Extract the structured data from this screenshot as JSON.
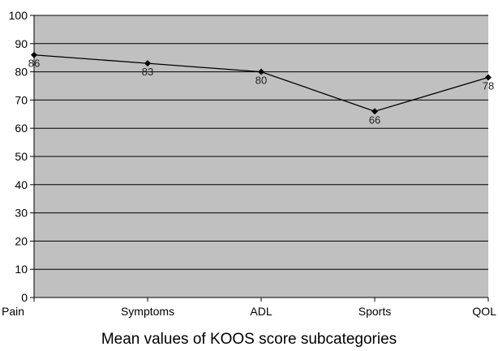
{
  "chart_data": {
    "type": "line",
    "categories": [
      "Pain",
      "Symptoms",
      "ADL",
      "Sports",
      "QOL"
    ],
    "series": [
      {
        "values": [
          86,
          83,
          80,
          66,
          78
        ]
      }
    ],
    "data_labels": [
      "86",
      "83",
      "80",
      "66",
      "78"
    ],
    "xlabel": "Mean values of KOOS score subcategories",
    "ylabel": "",
    "ylim": [
      0,
      100
    ],
    "yticks": [
      "0",
      "10",
      "20",
      "30",
      "40",
      "50",
      "60",
      "70",
      "80",
      "90",
      "100"
    ],
    "grid": true,
    "colors": {
      "plot_background": "#c0c0c0",
      "line": "#000000",
      "gridline": "#000000"
    }
  }
}
